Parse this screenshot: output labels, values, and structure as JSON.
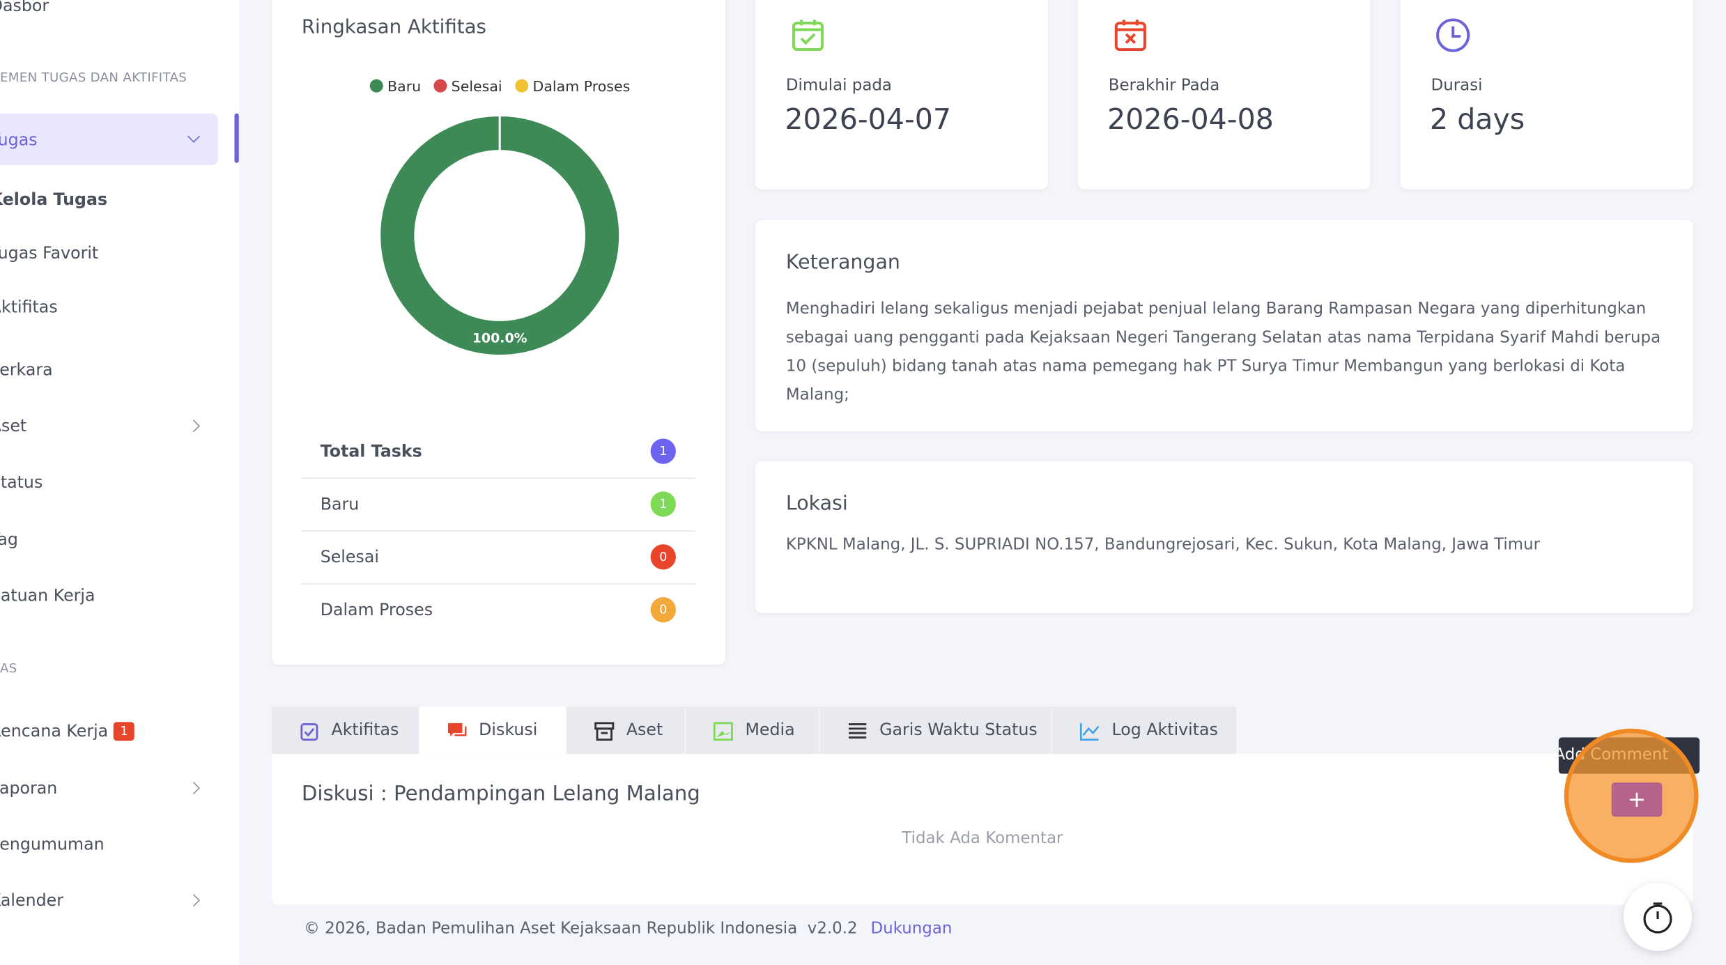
{
  "sidebar": {
    "items": [
      "Dasbor",
      "EMEN TUGAS DAN AKTIFITAS",
      "Tugas",
      "Kelola Tugas",
      "Tugas Favorit",
      "Aktifitas",
      "Perkara",
      "Aset",
      "Status",
      "Tag",
      "Satuan Kerja",
      "AS",
      "Rencana Kerja",
      "Laporan",
      "Pengumuman",
      "Kalender"
    ],
    "badge": 1
  },
  "summary": {
    "title": "Ringkasan Aktifitas",
    "table": [
      {
        "label": "Total Tasks",
        "count": 1
      },
      {
        "label": "Baru",
        "count": 1
      },
      {
        "label": "Selesai",
        "count": 0
      },
      {
        "label": "Dalam Proses",
        "count": 0
      }
    ]
  },
  "chart_data": {
    "type": "pie",
    "categories": [
      "Baru",
      "Selesai",
      "Dalam Proses"
    ],
    "values": [
      100,
      0,
      0
    ],
    "value_labels": [
      "100.0%",
      null,
      null
    ],
    "colors": [
      "#3d8a56",
      "#d94848",
      "#f1c232"
    ],
    "legend": "top"
  },
  "stats": [
    {
      "label": "Dimulai pada",
      "value": "2026-04-07"
    },
    {
      "label": "Berakhir Pada",
      "value": "2026-04-08"
    },
    {
      "label": "Durasi",
      "value": "2 days"
    }
  ],
  "keterangan": {
    "title": "Keterangan",
    "text": "Menghadiri lelang sekaligus menjadi pejabat penjual lelang Barang Rampasan Negara yang diperhitungkan sebagai uang pengganti pada Kejaksaan Negeri Tangerang Selatan atas nama Terpidana Syarif Mahdi berupa 10 (sepuluh) bidang tanah atas nama pemegang hak PT Surya Timur Membangun yang berlokasi di Kota Malang;"
  },
  "lokasi": {
    "title": "Lokasi",
    "text": "KPKNL Malang, JL. S. SUPRIADI NO.157, Bandungrejosari, Kec. Sukun, Kota Malang, Jawa Timur"
  },
  "tabs": [
    "Aktifitas",
    "Diskusi",
    "Aset",
    "Media",
    "Garis Waktu Status",
    "Log Aktivitas"
  ],
  "discussion": {
    "title": "Diskusi : Pendampingan Lelang Malang",
    "empty": "Tidak Ada Komentar"
  },
  "tooltip": "Add Comment",
  "button": "+",
  "footer": {
    "copyright": "© 2026, Badan Pemulihan Aset Kejaksaan Republik Indonesia",
    "version": "v2.0.2",
    "link": "Dukungan"
  }
}
